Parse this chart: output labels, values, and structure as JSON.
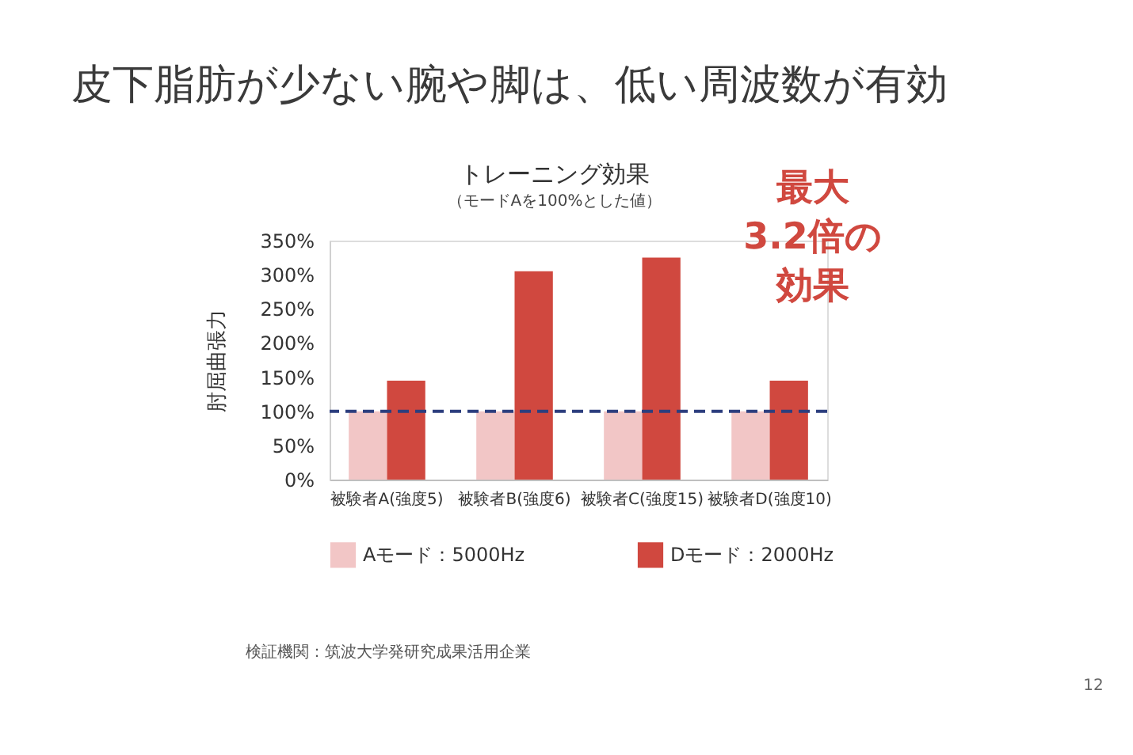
{
  "chart_data": {
    "type": "bar",
    "title": "皮下脂肪が少ない腕や脚は、低い周波数が有効",
    "subtitle": "トレーニング効果",
    "ylabel": "肘屈曲張力",
    "annotations": [
      "（モードAを100%とした値）",
      "最大",
      "3.2倍の",
      "効果",
      "検証機関：筑波大学発研究成果活用企業",
      "12"
    ],
    "categories": [
      "被験者A(強度5)",
      "被験者B(強度6)",
      "被験者C(強度15)",
      "被験者D(強度10)"
    ],
    "series": [
      {
        "name": "Aモード：5000Hz",
        "color": "#f2c6c6",
        "values": [
          100,
          100,
          100,
          100
        ]
      },
      {
        "name": "Dモード：2000Hz",
        "color": "#d0483f",
        "values": [
          145,
          305,
          325,
          145
        ]
      }
    ],
    "ylim": [
      0,
      350
    ],
    "yticks": [
      {
        "value": 0,
        "label": "0%"
      },
      {
        "value": 50,
        "label": "50%"
      },
      {
        "value": 100,
        "label": "100%"
      },
      {
        "value": 150,
        "label": "150%"
      },
      {
        "value": 200,
        "label": "200%"
      },
      {
        "value": 250,
        "label": "250%"
      },
      {
        "value": 300,
        "label": "300%"
      },
      {
        "value": 350,
        "label": "350%"
      }
    ],
    "ref_lines": [
      {
        "axis": "y",
        "value": 100,
        "color": "#2c3e7e",
        "line_style": "dashed"
      }
    ],
    "legend": "bottom"
  }
}
